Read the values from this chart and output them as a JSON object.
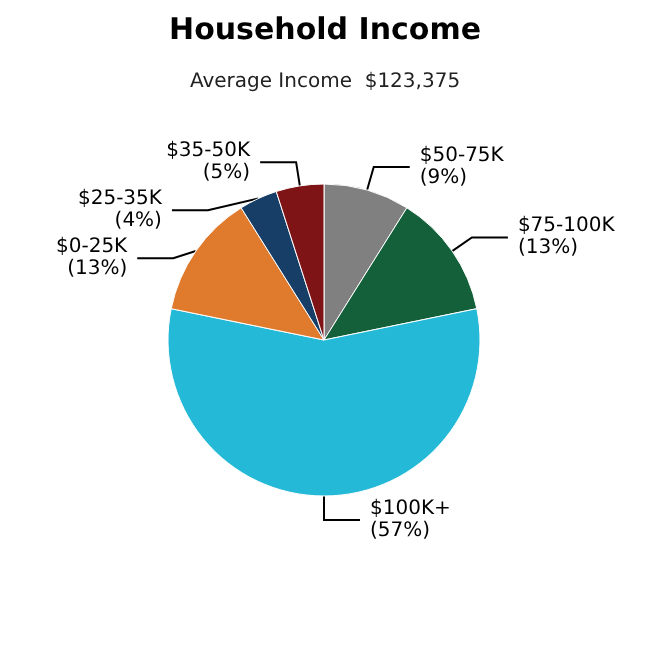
{
  "chart_data": {
    "type": "pie",
    "title": "Household Income",
    "subtitle": "Average Income  $123,375",
    "categories": [
      "$50-75K",
      "$75-100K",
      "$100K+",
      "$0-25K",
      "$25-35K",
      "$35-50K"
    ],
    "values": [
      9,
      13,
      57,
      13,
      4,
      5
    ],
    "value_labels": [
      "(9%)",
      "(13%)",
      "(57%)",
      "(13%)",
      "(4%)",
      "(5%)"
    ],
    "colors": [
      "#808080",
      "#13603a",
      "#25b9d8",
      "#e07a2c",
      "#173e66",
      "#7e1416"
    ],
    "legend": false
  }
}
